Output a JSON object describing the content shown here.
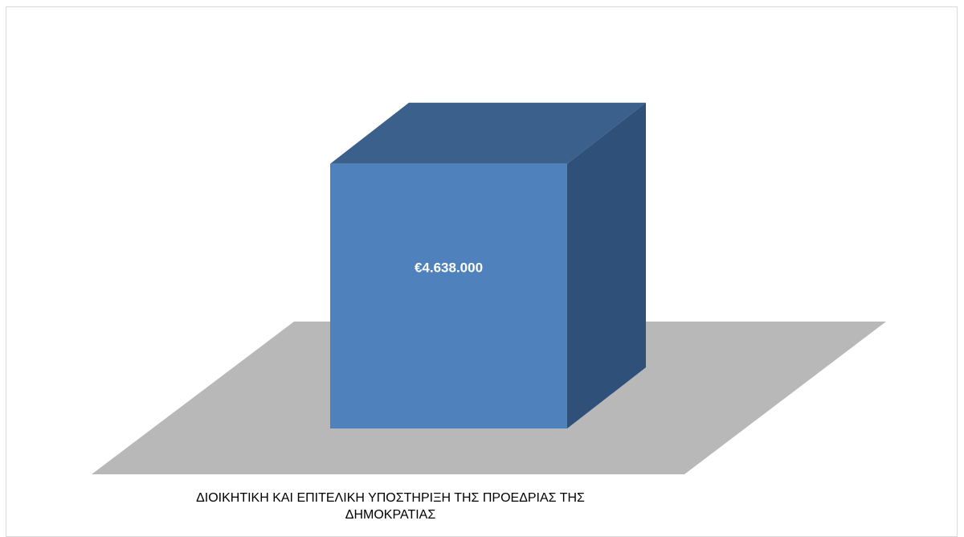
{
  "chart_data": {
    "type": "bar",
    "style": "3d",
    "categories": [
      "ΔΙΟΙΚΗΤΙΚΗ ΚΑΙ ΕΠΙΤΕΛΙΚΗ ΥΠΟΣΤΗΡΙΞΗ ΤΗΣ ΠΡΟΕΔΡΙΑΣ ΤΗΣ ΔΗΜΟΚΡΑΤΙΑΣ"
    ],
    "category_lines": [
      "ΔΙΟΙΚΗΤΙΚΗ ΚΑΙ ΕΠΙΤΕΛΙΚΗ ΥΠΟΣΤΗΡΙΞΗ ΤΗΣ ΠΡΟΕΔΡΙΑΣ ΤΗΣ",
      "ΔΗΜΟΚΡΑΤΙΑΣ"
    ],
    "values": [
      4638000
    ],
    "data_labels": [
      "€4.638.000"
    ],
    "title": "",
    "xlabel": "",
    "ylabel": "",
    "ylim": [
      0,
      5000000
    ],
    "grid": false,
    "legend": "none",
    "colors": {
      "bar_front": "#4f81bd",
      "bar_top": "#3c608c",
      "bar_side": "#2f5078",
      "floor": "#b8b8b8",
      "data_label": "#ffffff",
      "axis_label": "#000000"
    }
  }
}
